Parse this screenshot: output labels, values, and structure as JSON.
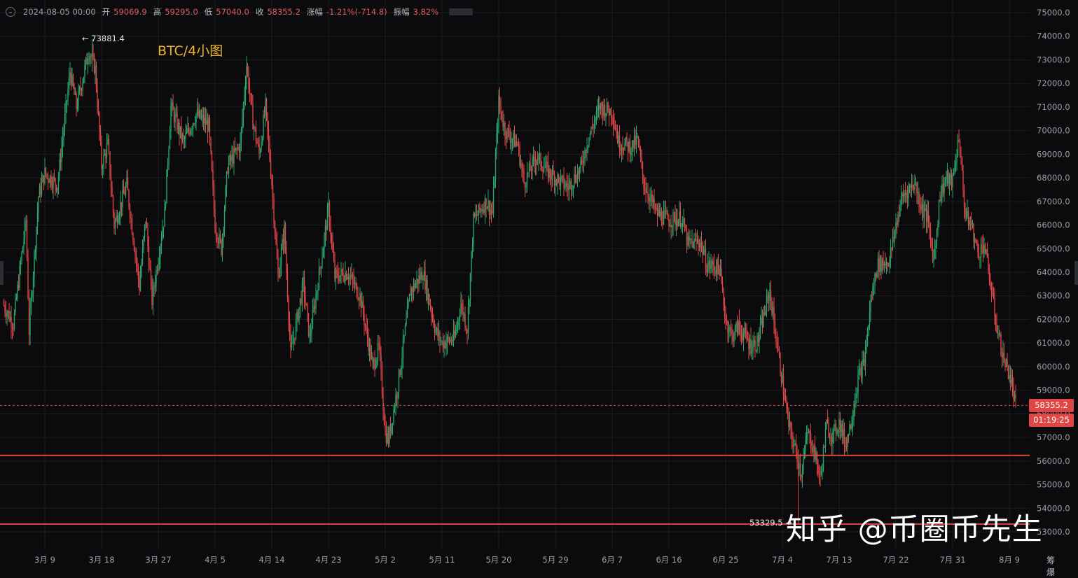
{
  "ohlc_bar": {
    "date": "2024-08-05 00:00",
    "open_label": "开",
    "open": "59069.9",
    "high_label": "高",
    "high": "59295.0",
    "low_label": "低",
    "low": "57040.0",
    "close_label": "收",
    "close": "58355.2",
    "change_label": "涨幅",
    "change": "-1.21%(-714.8)",
    "amplitude_label": "振幅",
    "amplitude": "3.82%"
  },
  "annotations": {
    "chart_title": "BTC/4小图",
    "high_marker": "← 73881.4",
    "low_marker": "53329.5 →"
  },
  "price_tag": "58355.2",
  "countdown_tag": "01:19:25",
  "watermark": "知乎 @币圈币先生",
  "scale_tools": "筹 爆",
  "colors": {
    "up": "#26a66b",
    "down": "#e04646",
    "support_line": "#e04646",
    "background": "#0b0b0d",
    "title": "#f0b429"
  },
  "chart_data": {
    "type": "candlestick",
    "interval": "4h",
    "title": "BTC/4小图",
    "x_tick_labels": [
      "3月 9",
      "3月 18",
      "3月 27",
      "4月 5",
      "4月 14",
      "4月 23",
      "5月 2",
      "5月 11",
      "5月 20",
      "5月 29",
      "6月 7",
      "6月 16",
      "6月 25",
      "7月 4",
      "7月 13",
      "7月 22",
      "7月 31",
      "8月 9"
    ],
    "x_tick_day_index": [
      0,
      9,
      18,
      27,
      36,
      45,
      54,
      63,
      72,
      81,
      90,
      99,
      108,
      117,
      126,
      135,
      144,
      153
    ],
    "y_tick_labels": [
      "75000.0",
      "74000.0",
      "73000.0",
      "72000.0",
      "71000.0",
      "70000.0",
      "69000.0",
      "68000.0",
      "67000.0",
      "66000.0",
      "65000.0",
      "64000.0",
      "63000.0",
      "62000.0",
      "61000.0",
      "60000.0",
      "59000.0",
      "58000.0",
      "57000.0",
      "56000.0",
      "55000.0",
      "54000.0",
      "53000.0"
    ],
    "ylim": [
      52700,
      75300
    ],
    "day_range": [
      -6.8,
      157.5
    ],
    "grid": true,
    "last_price": 58355.2,
    "support_lines": [
      56240,
      53330
    ],
    "extremes": {
      "high": 73881.4,
      "low": 53329.5
    },
    "approx_close_path": [
      {
        "day": -6.5,
        "price": 62600
      },
      {
        "day": -5,
        "price": 61800
      },
      {
        "day": -3,
        "price": 66200
      },
      {
        "day": -2.5,
        "price": 61500
      },
      {
        "day": -1,
        "price": 67200
      },
      {
        "day": 0,
        "price": 68200
      },
      {
        "day": 2,
        "price": 67700
      },
      {
        "day": 4,
        "price": 72500
      },
      {
        "day": 5,
        "price": 71000
      },
      {
        "day": 7,
        "price": 73400
      },
      {
        "day": 8,
        "price": 72600
      },
      {
        "day": 9,
        "price": 68500
      },
      {
        "day": 10,
        "price": 69400
      },
      {
        "day": 11,
        "price": 66000
      },
      {
        "day": 13,
        "price": 67700
      },
      {
        "day": 15,
        "price": 63400
      },
      {
        "day": 16,
        "price": 66300
      },
      {
        "day": 17,
        "price": 62800
      },
      {
        "day": 19,
        "price": 66500
      },
      {
        "day": 20,
        "price": 71000
      },
      {
        "day": 22,
        "price": 69500
      },
      {
        "day": 24,
        "price": 70700
      },
      {
        "day": 26,
        "price": 70200
      },
      {
        "day": 27,
        "price": 66000
      },
      {
        "day": 28,
        "price": 65000
      },
      {
        "day": 29,
        "price": 68500
      },
      {
        "day": 31,
        "price": 69400
      },
      {
        "day": 32,
        "price": 72800
      },
      {
        "day": 33,
        "price": 70400
      },
      {
        "day": 34,
        "price": 69000
      },
      {
        "day": 35,
        "price": 71000
      },
      {
        "day": 36,
        "price": 67800
      },
      {
        "day": 37,
        "price": 63800
      },
      {
        "day": 38,
        "price": 65800
      },
      {
        "day": 39,
        "price": 60500
      },
      {
        "day": 41,
        "price": 63500
      },
      {
        "day": 42,
        "price": 61200
      },
      {
        "day": 44,
        "price": 64800
      },
      {
        "day": 45,
        "price": 66700
      },
      {
        "day": 46,
        "price": 63800
      },
      {
        "day": 48,
        "price": 64000
      },
      {
        "day": 50,
        "price": 63000
      },
      {
        "day": 52,
        "price": 60000
      },
      {
        "day": 53,
        "price": 60800
      },
      {
        "day": 54,
        "price": 57200
      },
      {
        "day": 54.5,
        "price": 56900
      },
      {
        "day": 56,
        "price": 59200
      },
      {
        "day": 58,
        "price": 63200
      },
      {
        "day": 60,
        "price": 64000
      },
      {
        "day": 62,
        "price": 61500
      },
      {
        "day": 63,
        "price": 61000
      },
      {
        "day": 65,
        "price": 61200
      },
      {
        "day": 66,
        "price": 62700
      },
      {
        "day": 67,
        "price": 61600
      },
      {
        "day": 68,
        "price": 66200
      },
      {
        "day": 70,
        "price": 67000
      },
      {
        "day": 71,
        "price": 66500
      },
      {
        "day": 72,
        "price": 71200
      },
      {
        "day": 73,
        "price": 70000
      },
      {
        "day": 75,
        "price": 69400
      },
      {
        "day": 76,
        "price": 67800
      },
      {
        "day": 78,
        "price": 68900
      },
      {
        "day": 80,
        "price": 68200
      },
      {
        "day": 81,
        "price": 68000
      },
      {
        "day": 83,
        "price": 67600
      },
      {
        "day": 85,
        "price": 68400
      },
      {
        "day": 86,
        "price": 69500
      },
      {
        "day": 88,
        "price": 71000
      },
      {
        "day": 90,
        "price": 70800
      },
      {
        "day": 91,
        "price": 69500
      },
      {
        "day": 93,
        "price": 69300
      },
      {
        "day": 94,
        "price": 69600
      },
      {
        "day": 95,
        "price": 67800
      },
      {
        "day": 97,
        "price": 66500
      },
      {
        "day": 99,
        "price": 66200
      },
      {
        "day": 101,
        "price": 66300
      },
      {
        "day": 102,
        "price": 65200
      },
      {
        "day": 104,
        "price": 65300
      },
      {
        "day": 105,
        "price": 64300
      },
      {
        "day": 107,
        "price": 64200
      },
      {
        "day": 108,
        "price": 62000
      },
      {
        "day": 109,
        "price": 61300
      },
      {
        "day": 110,
        "price": 61700
      },
      {
        "day": 112,
        "price": 60900
      },
      {
        "day": 113,
        "price": 61000
      },
      {
        "day": 115,
        "price": 63200
      },
      {
        "day": 116,
        "price": 61200
      },
      {
        "day": 118,
        "price": 57500
      },
      {
        "day": 120,
        "price": 55500
      },
      {
        "day": 121,
        "price": 57200
      },
      {
        "day": 122,
        "price": 56500
      },
      {
        "day": 123,
        "price": 55200
      },
      {
        "day": 124,
        "price": 57500
      },
      {
        "day": 125,
        "price": 57000
      },
      {
        "day": 126,
        "price": 57700
      },
      {
        "day": 127,
        "price": 56700
      },
      {
        "day": 128,
        "price": 57800
      },
      {
        "day": 129,
        "price": 59500
      },
      {
        "day": 130,
        "price": 60200
      },
      {
        "day": 131,
        "price": 62700
      },
      {
        "day": 132,
        "price": 64300
      },
      {
        "day": 134,
        "price": 64500
      },
      {
        "day": 135,
        "price": 66000
      },
      {
        "day": 136,
        "price": 67200
      },
      {
        "day": 138,
        "price": 67800
      },
      {
        "day": 139,
        "price": 66800
      },
      {
        "day": 140,
        "price": 66300
      },
      {
        "day": 141,
        "price": 64500
      },
      {
        "day": 142,
        "price": 67300
      },
      {
        "day": 143,
        "price": 68000
      },
      {
        "day": 144,
        "price": 67800
      },
      {
        "day": 145,
        "price": 69800
      },
      {
        "day": 146,
        "price": 66400
      },
      {
        "day": 147,
        "price": 66000
      },
      {
        "day": 148,
        "price": 64800
      },
      {
        "day": 149,
        "price": 65200
      },
      {
        "day": 150,
        "price": 63500
      },
      {
        "day": 151,
        "price": 61700
      },
      {
        "day": 152,
        "price": 60400
      },
      {
        "day": 153,
        "price": 59700
      },
      {
        "day": 154,
        "price": 58355
      }
    ]
  }
}
